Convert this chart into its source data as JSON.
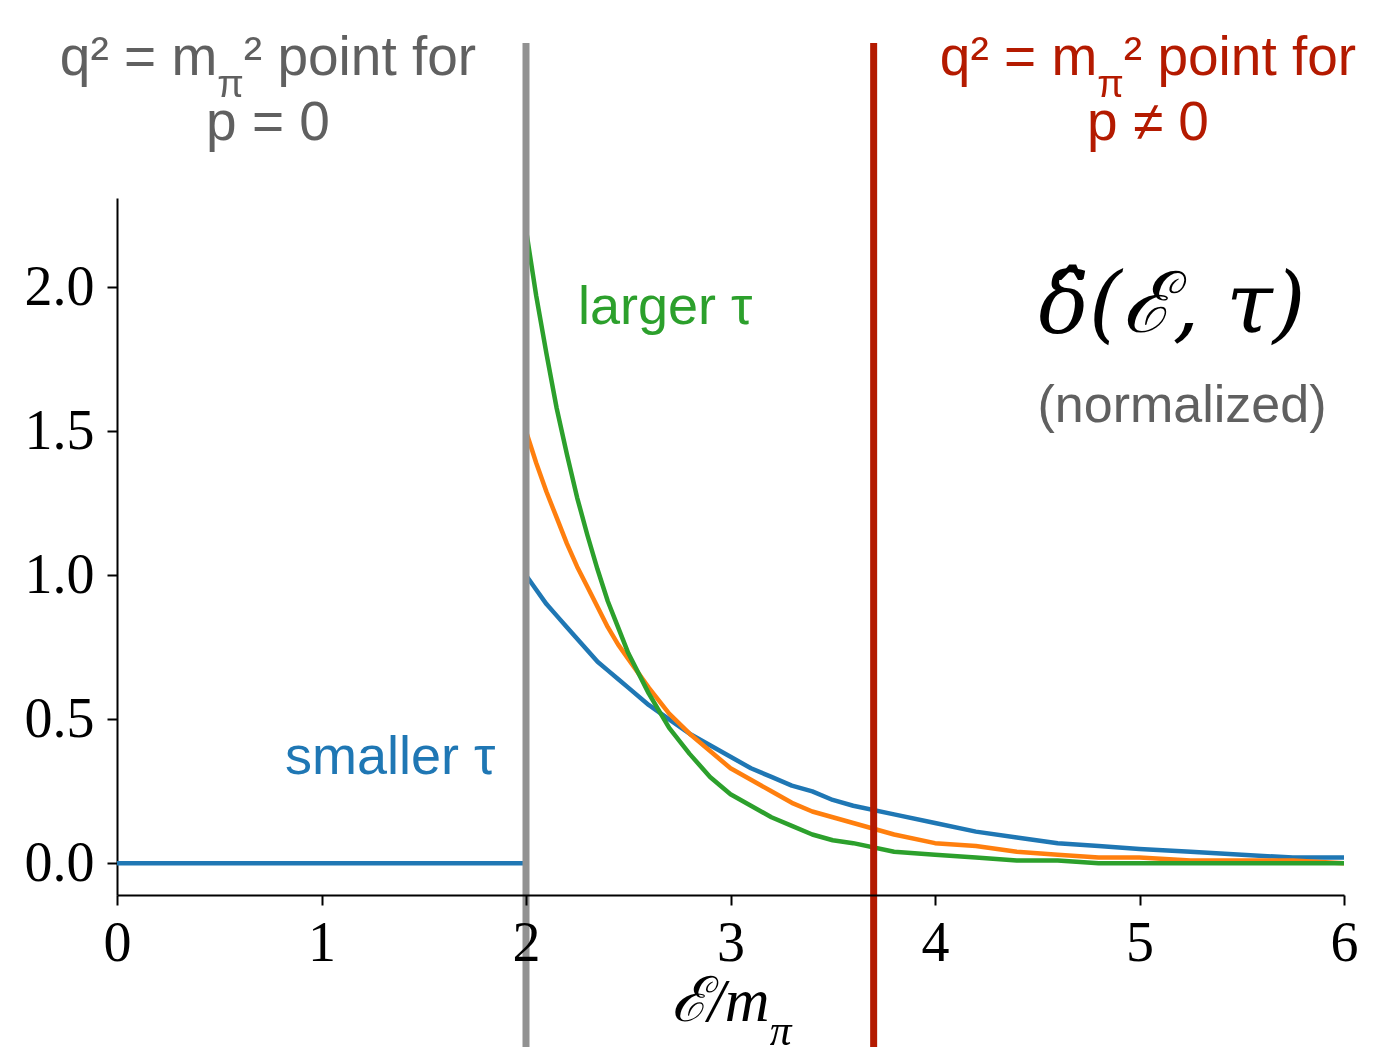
{
  "chart_data": {
    "type": "line",
    "xlabel": "ℰ/m$_{π}$",
    "annotations": [
      "q² = m$_{π}$² point for\np = 0",
      "q² = m$_{π}$² point for\np ≠ 0",
      "δ̂(ℰ, τ)",
      "(normalized)"
    ],
    "xlim": [
      0,
      6
    ],
    "xticks": [
      0,
      1,
      2,
      3,
      4,
      5,
      6
    ],
    "ylim": [
      -0.11,
      2.31
    ],
    "yticks": [
      {
        "value": 0,
        "label": "0.0"
      },
      0.5,
      {
        "value": 1,
        "label": "1.0"
      },
      1.5,
      {
        "value": 2,
        "label": "2.0"
      }
    ],
    "series": [
      {
        "name": "smaller τ",
        "color": "#1f77b4",
        "x": [
          0,
          2,
          2,
          2.05,
          2.1,
          2.15,
          2.2,
          2.25,
          2.3,
          2.35,
          2.4,
          2.45,
          2.5,
          2.6,
          2.7,
          2.8,
          2.9,
          3,
          3.1,
          3.2,
          3.3,
          3.4,
          3.5,
          3.6,
          3.8,
          4,
          4.2,
          4.4,
          4.6,
          4.8,
          5,
          5.25,
          5.5,
          5.75,
          6
        ],
        "values": [
          0,
          0,
          1.0,
          0.95,
          0.9,
          0.86,
          0.82,
          0.78,
          0.74,
          0.7,
          0.67,
          0.64,
          0.61,
          0.55,
          0.5,
          0.45,
          0.41,
          0.37,
          0.33,
          0.3,
          0.27,
          0.25,
          0.22,
          0.2,
          0.17,
          0.14,
          0.11,
          0.09,
          0.07,
          0.06,
          0.05,
          0.04,
          0.03,
          0.02,
          0.02
        ]
      },
      {
        "color": "#ff7f0e",
        "x": [
          2,
          2.05,
          2.1,
          2.15,
          2.2,
          2.25,
          2.3,
          2.35,
          2.4,
          2.45,
          2.5,
          2.6,
          2.7,
          2.8,
          2.9,
          3,
          3.1,
          3.2,
          3.3,
          3.4,
          3.5,
          3.6,
          3.8,
          4,
          4.2,
          4.4,
          4.6,
          4.8,
          5,
          5.25,
          5.5,
          5.75,
          6
        ],
        "values": [
          1.5,
          1.39,
          1.29,
          1.2,
          1.11,
          1.03,
          0.96,
          0.89,
          0.82,
          0.76,
          0.71,
          0.61,
          0.52,
          0.45,
          0.39,
          0.33,
          0.29,
          0.25,
          0.21,
          0.18,
          0.16,
          0.14,
          0.1,
          0.07,
          0.06,
          0.04,
          0.03,
          0.02,
          0.02,
          0.01,
          0.01,
          0.01,
          0.0
        ]
      },
      {
        "name": "larger τ",
        "color": "#2ca02c",
        "x": [
          2,
          2.05,
          2.1,
          2.15,
          2.2,
          2.25,
          2.3,
          2.35,
          2.4,
          2.45,
          2.5,
          2.6,
          2.7,
          2.8,
          2.9,
          3,
          3.1,
          3.2,
          3.3,
          3.4,
          3.5,
          3.6,
          3.8,
          4,
          4.2,
          4.4,
          4.6,
          4.8,
          5,
          5.25,
          5.5,
          5.75,
          6
        ],
        "values": [
          2.2,
          1.97,
          1.77,
          1.58,
          1.42,
          1.27,
          1.14,
          1.02,
          0.91,
          0.82,
          0.73,
          0.59,
          0.47,
          0.38,
          0.3,
          0.24,
          0.2,
          0.16,
          0.13,
          0.1,
          0.08,
          0.07,
          0.04,
          0.03,
          0.02,
          0.01,
          0.01,
          0.0,
          0.0,
          0.0,
          0.0,
          0.0,
          0.0
        ]
      }
    ],
    "ref_lines": [
      {
        "axis": "x",
        "value": 2,
        "color": "#929292"
      },
      {
        "axis": "x",
        "value": 3.7,
        "color": "#b41a00"
      }
    ]
  }
}
